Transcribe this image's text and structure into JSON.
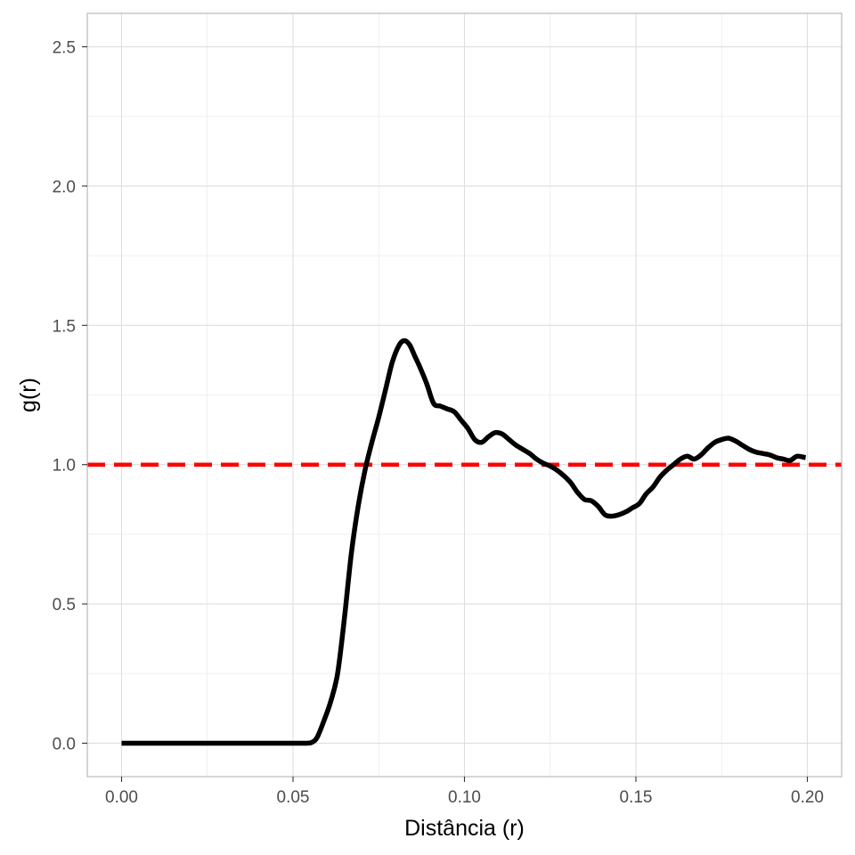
{
  "chart_data": {
    "type": "line",
    "title": "",
    "xlabel": "Distância (r)",
    "ylabel": "g(r)",
    "xlim": [
      -0.01,
      0.21
    ],
    "ylim": [
      -0.12,
      2.62
    ],
    "x_ticks": [
      0.0,
      0.05,
      0.1,
      0.15,
      0.2
    ],
    "x_tick_labels": [
      "0.00",
      "0.05",
      "0.10",
      "0.15",
      "0.20"
    ],
    "y_ticks": [
      0.0,
      0.5,
      1.0,
      1.5,
      2.0,
      2.5
    ],
    "y_tick_labels": [
      "0.0",
      "0.5",
      "1.0",
      "1.5",
      "2.0",
      "2.5"
    ],
    "grid": true,
    "reference_line": {
      "y": 1.0,
      "style": "dashed",
      "color": "#ff0000"
    },
    "series": [
      {
        "color": "#000000",
        "x": [
          0.0,
          0.01,
          0.02,
          0.03,
          0.04,
          0.05,
          0.054,
          0.0555,
          0.057,
          0.059,
          0.061,
          0.063,
          0.065,
          0.067,
          0.069,
          0.071,
          0.073,
          0.075,
          0.077,
          0.079,
          0.081,
          0.0825,
          0.084,
          0.0855,
          0.087,
          0.089,
          0.091,
          0.093,
          0.095,
          0.097,
          0.099,
          0.101,
          0.103,
          0.105,
          0.107,
          0.109,
          0.111,
          0.113,
          0.115,
          0.117,
          0.119,
          0.121,
          0.123,
          0.125,
          0.127,
          0.129,
          0.131,
          0.133,
          0.135,
          0.137,
          0.139,
          0.141,
          0.143,
          0.145,
          0.147,
          0.149,
          0.151,
          0.153,
          0.155,
          0.157,
          0.159,
          0.161,
          0.163,
          0.165,
          0.167,
          0.169,
          0.171,
          0.173,
          0.175,
          0.177,
          0.179,
          0.181,
          0.183,
          0.185,
          0.187,
          0.189,
          0.191,
          0.193,
          0.195,
          0.197,
          0.1995
        ],
        "y": [
          0.0,
          0.0,
          0.0,
          0.0,
          0.0,
          0.0,
          0.0,
          0.003,
          0.02,
          0.08,
          0.15,
          0.25,
          0.45,
          0.68,
          0.85,
          0.98,
          1.08,
          1.17,
          1.27,
          1.37,
          1.43,
          1.445,
          1.43,
          1.39,
          1.35,
          1.29,
          1.22,
          1.21,
          1.2,
          1.19,
          1.16,
          1.13,
          1.09,
          1.08,
          1.1,
          1.115,
          1.11,
          1.09,
          1.07,
          1.055,
          1.04,
          1.02,
          1.005,
          0.995,
          0.98,
          0.96,
          0.935,
          0.9,
          0.875,
          0.87,
          0.85,
          0.82,
          0.815,
          0.82,
          0.83,
          0.845,
          0.86,
          0.895,
          0.92,
          0.955,
          0.98,
          1.0,
          1.02,
          1.03,
          1.02,
          1.035,
          1.06,
          1.08,
          1.09,
          1.095,
          1.085,
          1.07,
          1.055,
          1.045,
          1.04,
          1.035,
          1.025,
          1.02,
          1.015,
          1.03,
          1.025
        ]
      }
    ]
  }
}
